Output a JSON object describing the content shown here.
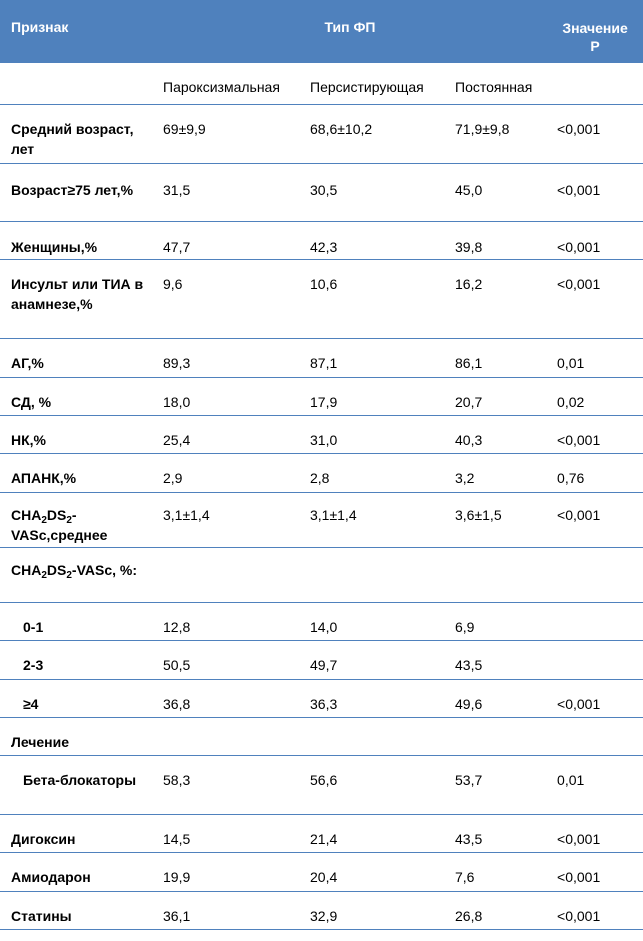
{
  "header": {
    "feature": "Признак",
    "type": "Тип ФП",
    "p_line1": "Значение",
    "p_line2": "P"
  },
  "subheader": {
    "paroxysmal": "Пароксизмальная",
    "persistent": "Персистирующая",
    "permanent": "Постоянная"
  },
  "rows": [
    {
      "label": "Средний возраст, лет",
      "v1": "69±9,9",
      "v2": "68,6±10,2",
      "v3": "71,9±9,8",
      "p": "<0,001"
    },
    {
      "label": "Возраст≥75 лет,%",
      "v1": "31,5",
      "v2": "30,5",
      "v3": "45,0",
      "p": "<0,001"
    },
    {
      "label": "Женщины,%",
      "v1": "47,7",
      "v2": "42,3",
      "v3": "39,8",
      "p": "<0,001"
    },
    {
      "label": "Инсульт или ТИА в анамнезе,%",
      "v1": "9,6",
      "v2": "10,6",
      "v3": "16,2",
      "p": "<0,001"
    },
    {
      "label": "АГ,%",
      "v1": "89,3",
      "v2": "87,1",
      "v3": "86,1",
      "p": "0,01"
    },
    {
      "label": "СД, %",
      "v1": "18,0",
      "v2": "17,9",
      "v3": "20,7",
      "p": "0,02"
    },
    {
      "label": "НК,%",
      "v1": "25,4",
      "v2": "31,0",
      "v3": "40,3",
      "p": "<0,001"
    },
    {
      "label": "АПАНК,%",
      "v1": "2,9",
      "v2": "2,8",
      "v3": "3,2",
      "p": "0,76"
    },
    {
      "label_a": "CHA",
      "label_sub1": "2",
      "label_b": "DS",
      "label_sub2": "2",
      "label_c": "-VASc,среднее",
      "v1": "3,1±1,4",
      "v2": "3,1±1,4",
      "v3": "3,6±1,5",
      "p": "<0,001"
    },
    {
      "label_a": "CHA",
      "label_sub1": "2",
      "label_b": "DS",
      "label_sub2": "2",
      "label_c": "-VASc, %:"
    },
    {
      "label": "0-1",
      "v1": "12,8",
      "v2": "14,0",
      "v3": "6,9",
      "p": ""
    },
    {
      "label": "2-3",
      "v1": "50,5",
      "v2": "49,7",
      "v3": "43,5",
      "p": ""
    },
    {
      "label": "≥4",
      "v1": "36,8",
      "v2": "36,3",
      "v3": "49,6",
      "p": "<0,001"
    },
    {
      "label": "Лечение"
    },
    {
      "label": "Бета-блокаторы",
      "v1": "58,3",
      "v2": "56,6",
      "v3": "53,7",
      "p": "0,01"
    },
    {
      "label": "Дигоксин",
      "v1": "14,5",
      "v2": "21,4",
      "v3": "43,5",
      "p": "<0,001"
    },
    {
      "label": "Амиодарон",
      "v1": "19,9",
      "v2": "20,4",
      "v3": "7,6",
      "p": "<0,001"
    },
    {
      "label": "Статины",
      "v1": "36,1",
      "v2": "32,9",
      "v3": "26,8",
      "p": "<0,001"
    }
  ]
}
